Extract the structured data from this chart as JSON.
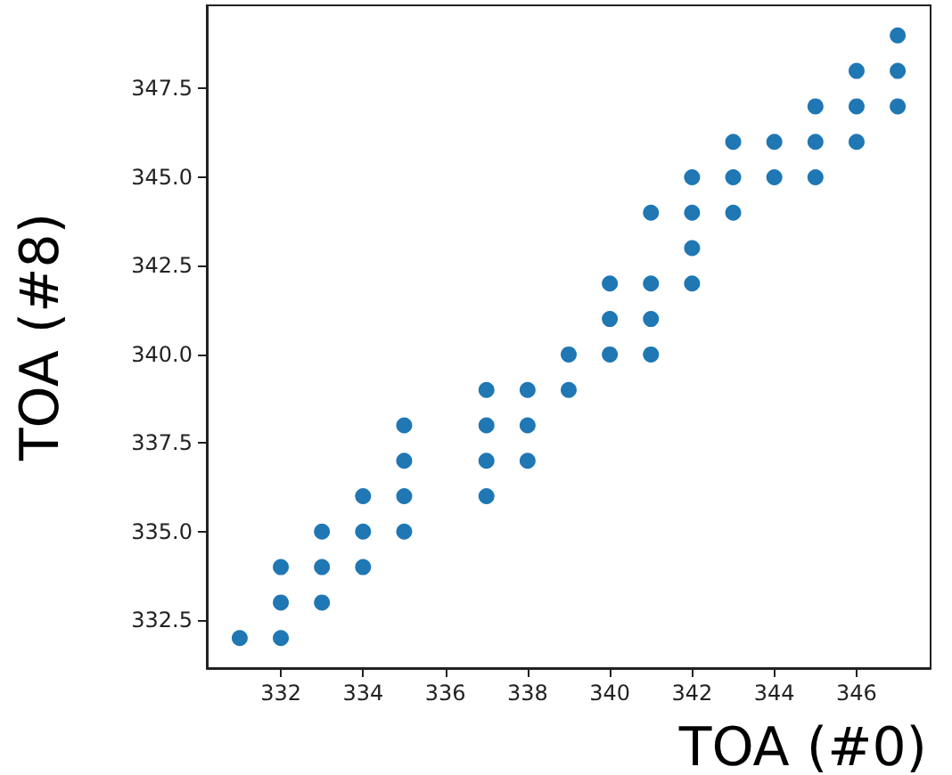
{
  "chart_data": {
    "type": "scatter",
    "xlabel": "TOA (#0)",
    "ylabel": "TOA (#8)",
    "marker": "circle",
    "grid": false,
    "xlim": [
      330.2,
      347.8
    ],
    "ylim": [
      331.15,
      349.85
    ],
    "xticks": [
      332,
      334,
      336,
      338,
      340,
      342,
      344,
      346
    ],
    "yticks": [
      {
        "value": 332.5,
        "label": "332.5"
      },
      {
        "value": 335,
        "label": "335.0"
      },
      {
        "value": 337.5,
        "label": "337.5"
      },
      {
        "value": 340,
        "label": "340.0"
      },
      {
        "value": 342.5,
        "label": "342.5"
      },
      {
        "value": 345,
        "label": "345.0"
      },
      {
        "value": 347.5,
        "label": "347.5"
      }
    ],
    "series": [
      {
        "color": "#1f77b4",
        "x": [
          331,
          332,
          332,
          332,
          333,
          333,
          333,
          334,
          334,
          334,
          335,
          335,
          335,
          335,
          337,
          337,
          337,
          337,
          338,
          338,
          338,
          339,
          339,
          340,
          340,
          340,
          341,
          341,
          341,
          341,
          342,
          342,
          342,
          342,
          343,
          343,
          343,
          344,
          344,
          345,
          345,
          345,
          346,
          346,
          346,
          347,
          347,
          347
        ],
        "values": [
          332,
          332,
          333,
          334,
          333,
          334,
          335,
          334,
          335,
          336,
          335,
          336,
          337,
          338,
          336,
          337,
          338,
          339,
          337,
          338,
          339,
          339,
          340,
          340,
          341,
          342,
          340,
          341,
          342,
          344,
          342,
          343,
          344,
          345,
          344,
          345,
          346,
          345,
          346,
          345,
          346,
          347,
          346,
          347,
          348,
          347,
          348,
          349
        ]
      }
    ]
  }
}
